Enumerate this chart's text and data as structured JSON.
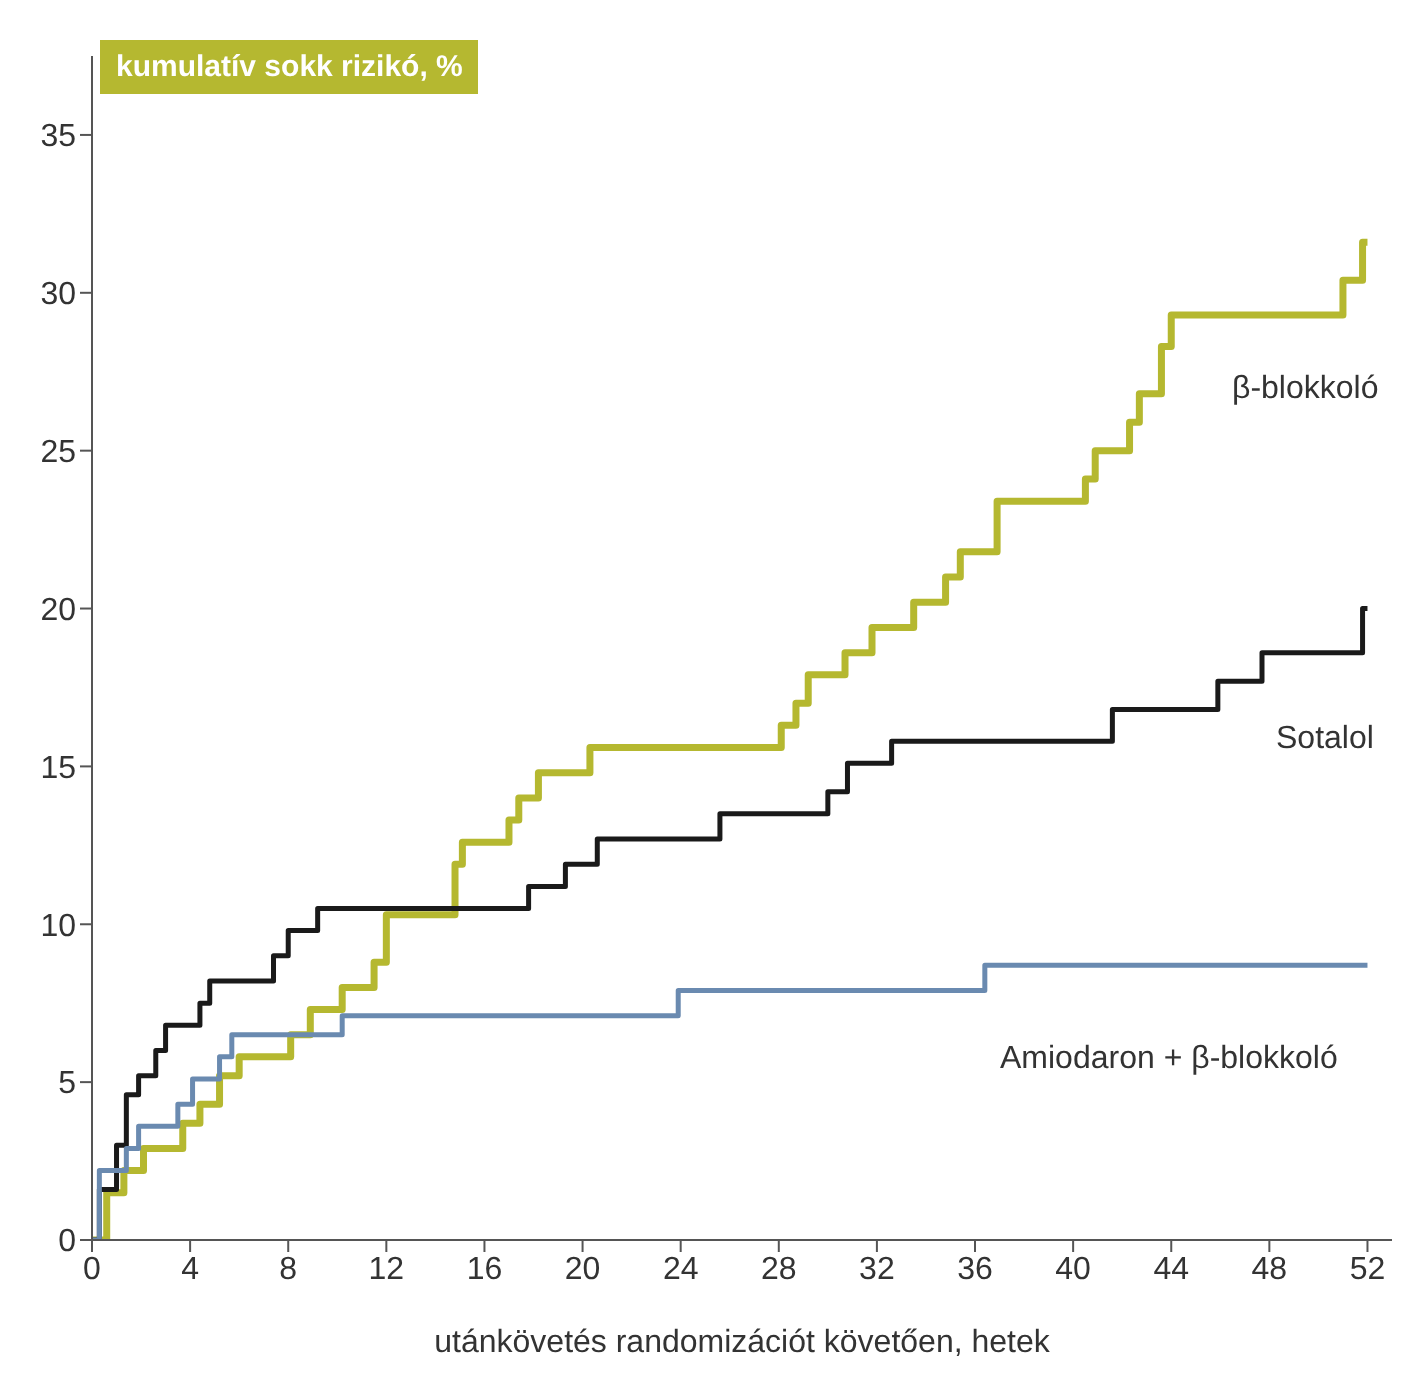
{
  "chart_data": {
    "type": "step",
    "ylabel": "kumulatív sokk rizikó, %",
    "xlabel": "utánkövetés randomizációt követően, hetek",
    "xlim": [
      0,
      53
    ],
    "xticks": [
      0,
      4,
      8,
      12,
      16,
      20,
      24,
      28,
      32,
      36,
      40,
      44,
      48,
      52
    ],
    "ylim": [
      0,
      37.5
    ],
    "yticks": [
      0,
      5,
      10,
      15,
      20,
      25,
      30,
      35
    ],
    "legend": false,
    "marker": "none",
    "line_style": "solid",
    "series": [
      {
        "name": "β-blokkoló",
        "color": "#b5b830",
        "x": [
          0,
          0.6,
          1.3,
          2.1,
          3.7,
          4.4,
          5.2,
          6.0,
          8.1,
          8.9,
          10.2,
          11.5,
          12.0,
          14.8,
          15.1,
          17.0,
          17.4,
          18.2,
          20.3,
          28.1,
          28.7,
          29.2,
          30.7,
          31.8,
          33.5,
          34.8,
          35.4,
          36.9,
          40.5,
          40.9,
          42.3,
          42.7,
          43.6,
          44.0,
          51.0,
          51.8,
          52
        ],
        "values": [
          0,
          1.5,
          2.2,
          2.9,
          3.7,
          4.3,
          5.2,
          5.8,
          6.5,
          7.3,
          8.0,
          8.8,
          10.3,
          11.9,
          12.6,
          13.3,
          14.0,
          14.8,
          15.6,
          16.3,
          17.0,
          17.9,
          18.6,
          19.4,
          20.2,
          21.0,
          21.8,
          23.4,
          24.1,
          25.0,
          25.9,
          26.8,
          28.3,
          29.3,
          30.4,
          31.6,
          31.6
        ]
      },
      {
        "name": "Sotalol",
        "color": "#1a1a1a",
        "x": [
          0,
          0.3,
          1.0,
          1.4,
          1.9,
          2.6,
          3.0,
          4.4,
          4.8,
          7.4,
          8.0,
          9.2,
          17.8,
          19.3,
          20.6,
          25.6,
          30.0,
          30.8,
          32.6,
          41.6,
          45.9,
          47.7,
          51.8,
          52
        ],
        "values": [
          0,
          1.6,
          3.0,
          4.6,
          5.2,
          6.0,
          6.8,
          7.5,
          8.2,
          9.0,
          9.8,
          10.5,
          11.2,
          11.9,
          12.7,
          13.5,
          14.2,
          15.1,
          15.8,
          16.8,
          17.7,
          18.6,
          20.0,
          20.0
        ]
      },
      {
        "name": "Amiodaron + β-blokkoló",
        "color": "#6a8ab0",
        "x": [
          0,
          0.3,
          1.4,
          1.9,
          3.5,
          4.1,
          5.2,
          5.7,
          10.2,
          23.9,
          36.4,
          52
        ],
        "values": [
          0,
          2.2,
          2.9,
          3.6,
          4.3,
          5.1,
          5.8,
          6.5,
          7.1,
          7.9,
          8.7,
          8.7
        ]
      }
    ]
  }
}
